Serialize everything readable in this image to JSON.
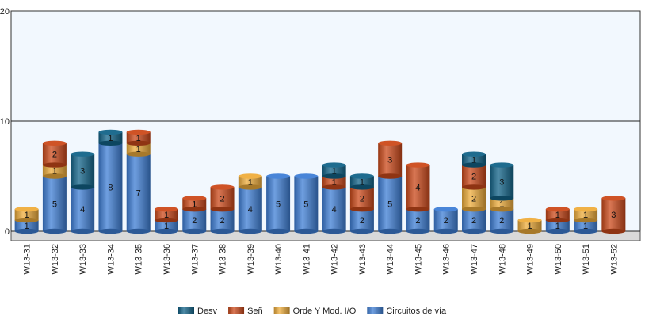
{
  "chart_data": {
    "type": "bar",
    "stacked": true,
    "title": "",
    "xlabel": "",
    "ylabel": "",
    "ylim": [
      0,
      20
    ],
    "yticks": [
      0,
      10,
      20
    ],
    "grid": true,
    "legend_position": "bottom",
    "categories": [
      "W13-31",
      "W13-32",
      "W13-33",
      "W13-34",
      "W13-35",
      "W13-36",
      "W13-37",
      "W13-38",
      "W13-39",
      "W13-40",
      "W13-41",
      "W13-42",
      "W13-43",
      "W13-44",
      "W13-45",
      "W13-46",
      "W13-47",
      "W13-48",
      "W13-49",
      "W13-50",
      "W13-51",
      "W13-52"
    ],
    "series": [
      {
        "name": "Circuitos de vía",
        "color": "#3f7fd6",
        "values": [
          1,
          5,
          4,
          8,
          7,
          1,
          2,
          2,
          4,
          5,
          5,
          4,
          2,
          5,
          2,
          2,
          2,
          2,
          0,
          1,
          1,
          0
        ]
      },
      {
        "name": "Orde Y Mod. I/O",
        "color": "#efad3c",
        "values": [
          1,
          1,
          0,
          0,
          1,
          0,
          0,
          0,
          1,
          0,
          0,
          0,
          0,
          0,
          0,
          0,
          2,
          1,
          1,
          0,
          1,
          0
        ]
      },
      {
        "name": "Señ",
        "color": "#cc4a1b",
        "values": [
          0,
          2,
          0,
          0,
          1,
          1,
          1,
          2,
          0,
          0,
          0,
          1,
          2,
          3,
          4,
          0,
          2,
          0,
          0,
          1,
          0,
          3
        ]
      },
      {
        "name": "Desv",
        "color": "#136489",
        "values": [
          0,
          0,
          3,
          1,
          0,
          0,
          0,
          0,
          0,
          0,
          0,
          1,
          1,
          0,
          0,
          0,
          1,
          3,
          0,
          0,
          0,
          0
        ]
      }
    ],
    "legend_order": [
      "Desv",
      "Señ",
      "Orde Y Mod. I/O",
      "Circuitos de vía"
    ]
  }
}
